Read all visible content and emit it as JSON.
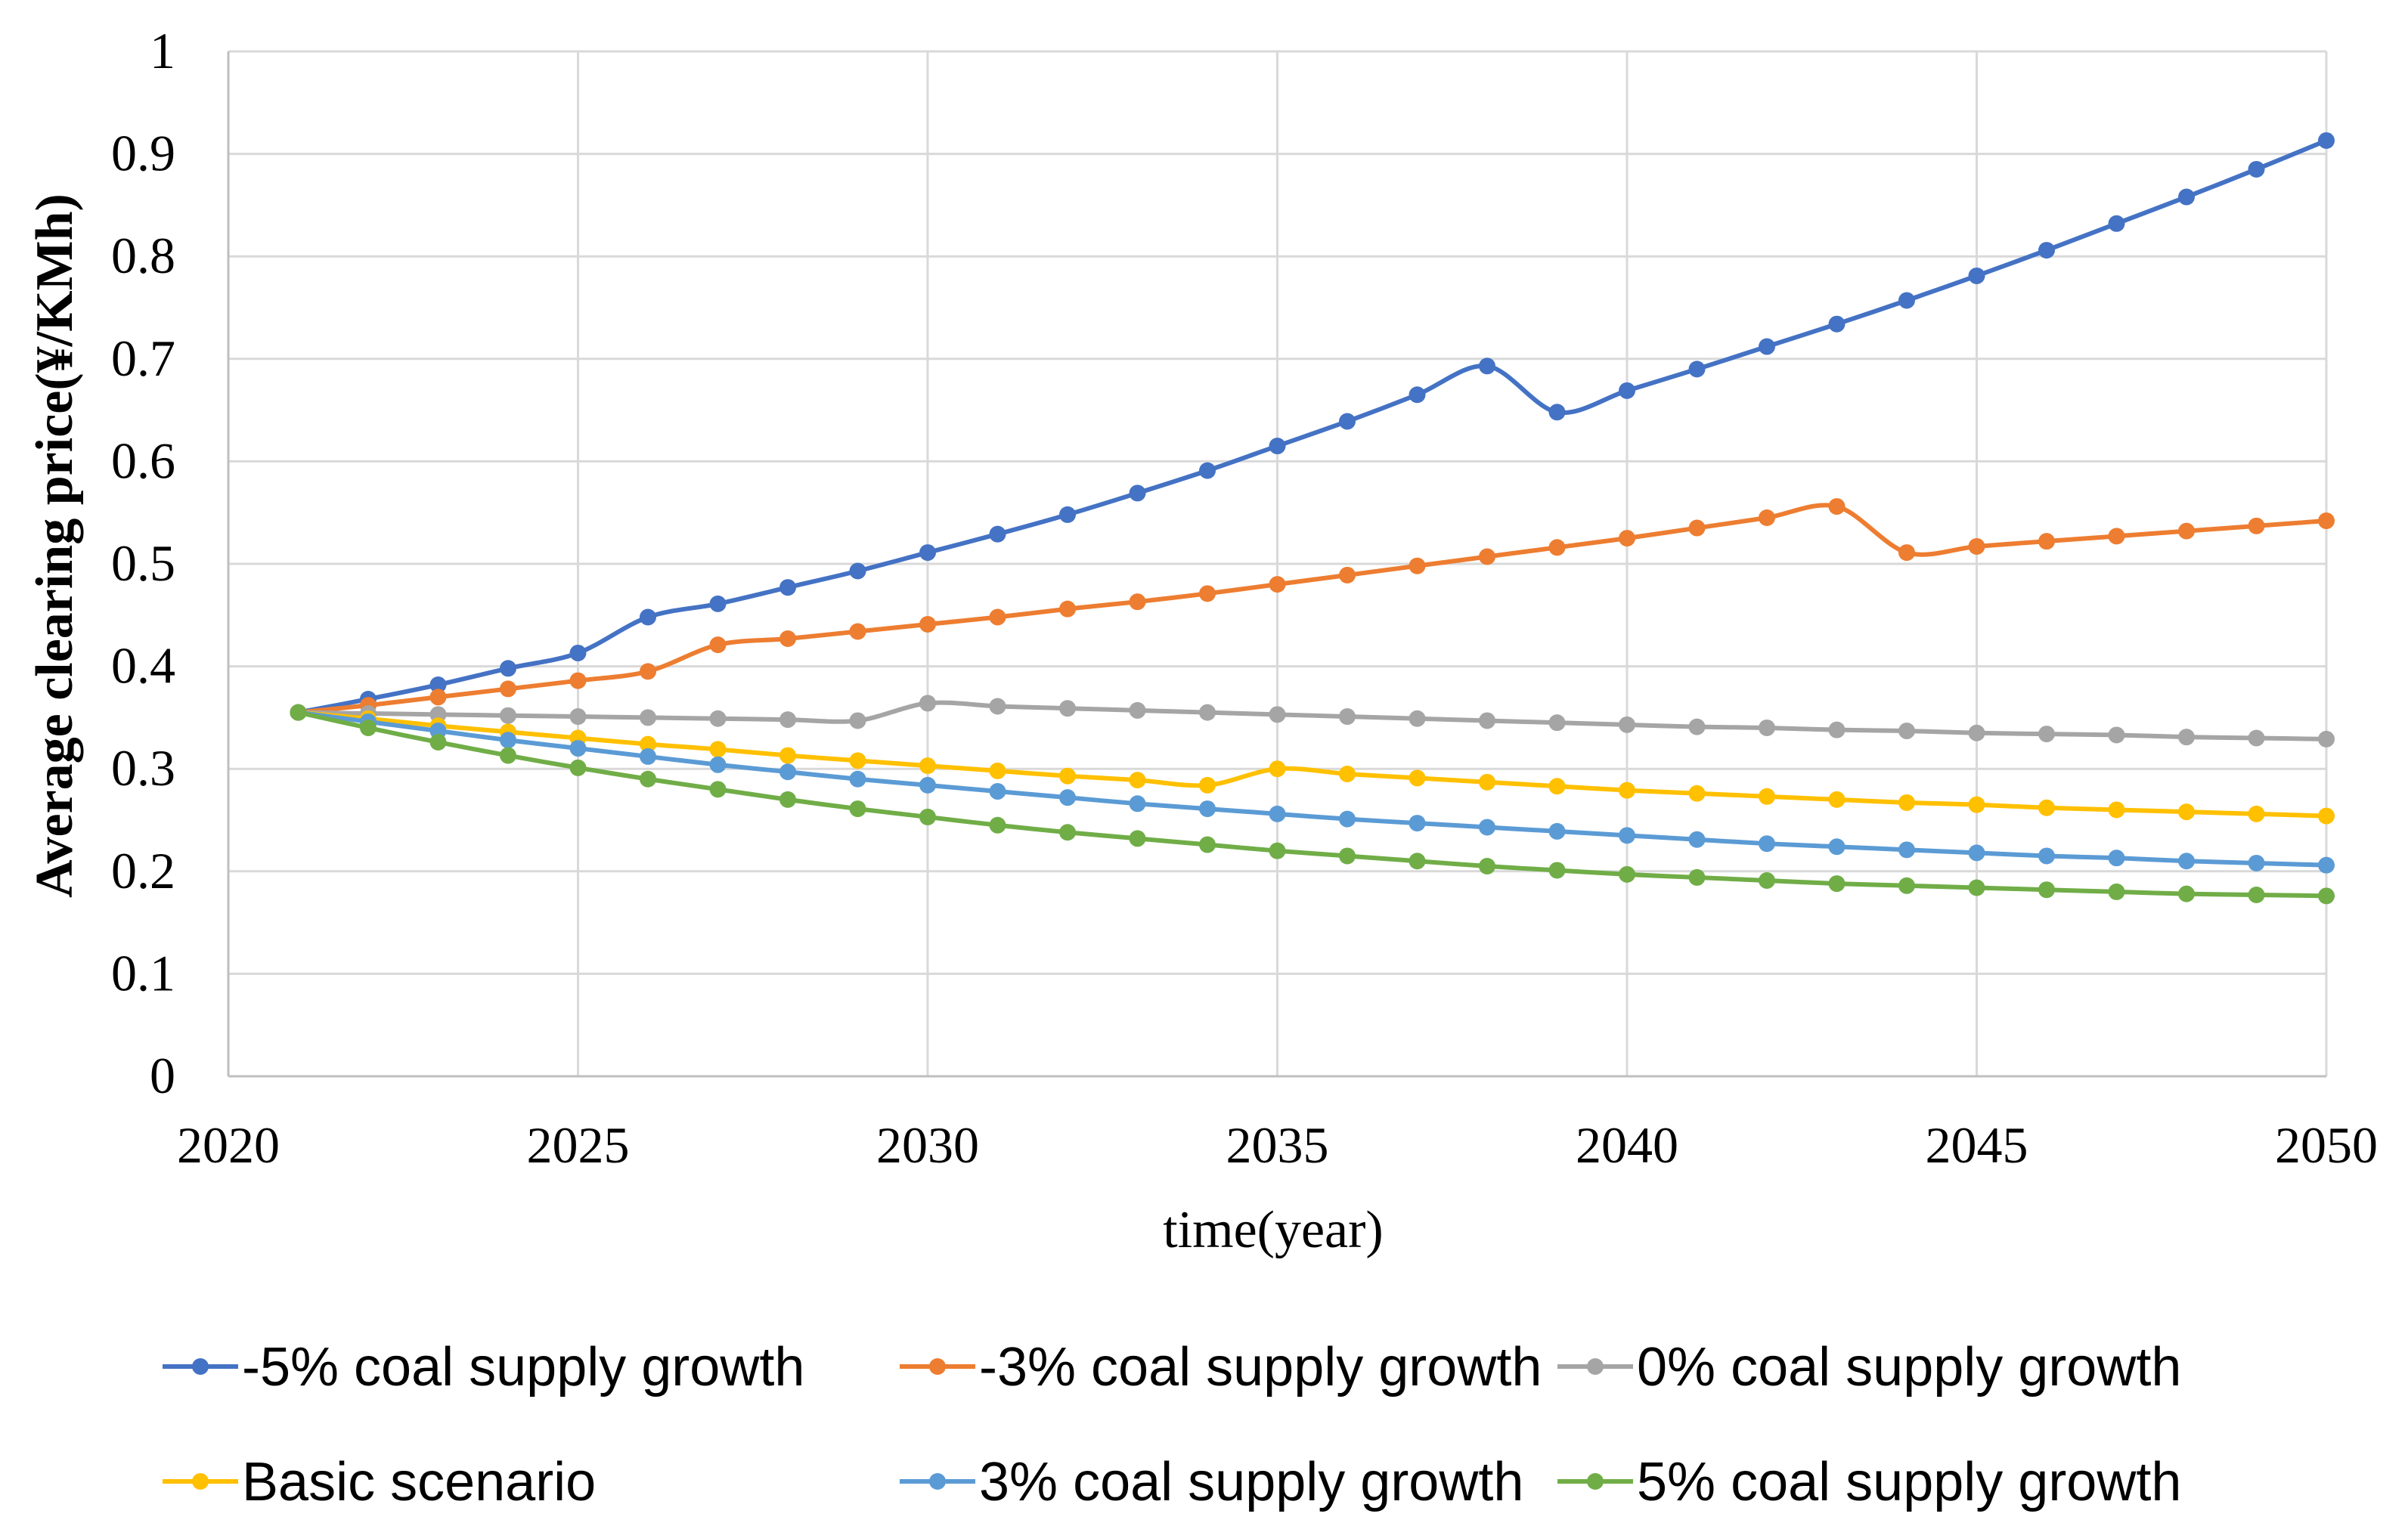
{
  "chart_data": {
    "type": "line",
    "title": "",
    "xlabel": "time(year)",
    "ylabel": "Average clearing price(¥/KMh)",
    "xlim": [
      2020,
      2050
    ],
    "ylim": [
      0,
      1
    ],
    "xticks": [
      "2020",
      "2025",
      "2030",
      "2035",
      "2040",
      "2045",
      "2050"
    ],
    "yticks": [
      "0",
      "0.1",
      "0.2",
      "0.3",
      "0.4",
      "0.5",
      "0.6",
      "0.7",
      "0.8",
      "0.9",
      "1"
    ],
    "grid": true,
    "legend_position": "bottom",
    "x": [
      2021,
      2022,
      2023,
      2024,
      2025,
      2026,
      2027,
      2028,
      2029,
      2030,
      2031,
      2032,
      2033,
      2034,
      2035,
      2036,
      2037,
      2038,
      2039,
      2040,
      2041,
      2042,
      2043,
      2044,
      2045,
      2046,
      2047,
      2048,
      2049,
      2050
    ],
    "series": [
      {
        "name": "-5% coal supply growth",
        "color": "#4472C4",
        "values": [
          0.355,
          0.368,
          0.382,
          0.398,
          0.413,
          0.448,
          0.461,
          0.477,
          0.493,
          0.511,
          0.529,
          0.548,
          0.569,
          0.591,
          0.615,
          0.639,
          0.665,
          0.693,
          0.648,
          0.669,
          0.69,
          0.712,
          0.734,
          0.757,
          0.781,
          0.806,
          0.832,
          0.858,
          0.885,
          0.913
        ]
      },
      {
        "name": "-3% coal supply growth",
        "color": "#ED7D31",
        "values": [
          0.355,
          0.362,
          0.37,
          0.378,
          0.386,
          0.395,
          0.421,
          0.427,
          0.434,
          0.441,
          0.448,
          0.456,
          0.463,
          0.471,
          0.48,
          0.489,
          0.498,
          0.507,
          0.516,
          0.525,
          0.535,
          0.545,
          0.556,
          0.511,
          0.517,
          0.522,
          0.527,
          0.532,
          0.537,
          0.542
        ]
      },
      {
        "name": "0% coal supply growth",
        "color": "#A5A5A5",
        "values": [
          0.355,
          0.354,
          0.353,
          0.352,
          0.351,
          0.35,
          0.349,
          0.348,
          0.347,
          0.364,
          0.361,
          0.359,
          0.357,
          0.355,
          0.353,
          0.351,
          0.349,
          0.347,
          0.345,
          0.343,
          0.341,
          0.34,
          0.338,
          0.337,
          0.335,
          0.334,
          0.333,
          0.331,
          0.33,
          0.329
        ]
      },
      {
        "name": "Basic scenario",
        "color": "#FFC000",
        "values": [
          0.355,
          0.349,
          0.342,
          0.336,
          0.33,
          0.324,
          0.319,
          0.313,
          0.308,
          0.303,
          0.298,
          0.293,
          0.289,
          0.284,
          0.3,
          0.295,
          0.291,
          0.287,
          0.283,
          0.279,
          0.276,
          0.273,
          0.27,
          0.267,
          0.265,
          0.262,
          0.26,
          0.258,
          0.256,
          0.254
        ]
      },
      {
        "name": "3% coal supply growth",
        "color": "#5B9BD5",
        "values": [
          0.355,
          0.346,
          0.337,
          0.328,
          0.32,
          0.312,
          0.304,
          0.297,
          0.29,
          0.284,
          0.278,
          0.272,
          0.266,
          0.261,
          0.256,
          0.251,
          0.247,
          0.243,
          0.239,
          0.235,
          0.231,
          0.227,
          0.224,
          0.221,
          0.218,
          0.215,
          0.213,
          0.21,
          0.208,
          0.206
        ]
      },
      {
        "name": "5% coal supply growth",
        "color": "#70AD47",
        "values": [
          0.355,
          0.34,
          0.326,
          0.313,
          0.301,
          0.29,
          0.28,
          0.27,
          0.261,
          0.253,
          0.245,
          0.238,
          0.232,
          0.226,
          0.22,
          0.215,
          0.21,
          0.205,
          0.201,
          0.197,
          0.194,
          0.191,
          0.188,
          0.186,
          0.184,
          0.182,
          0.18,
          0.178,
          0.177,
          0.176
        ]
      }
    ]
  }
}
